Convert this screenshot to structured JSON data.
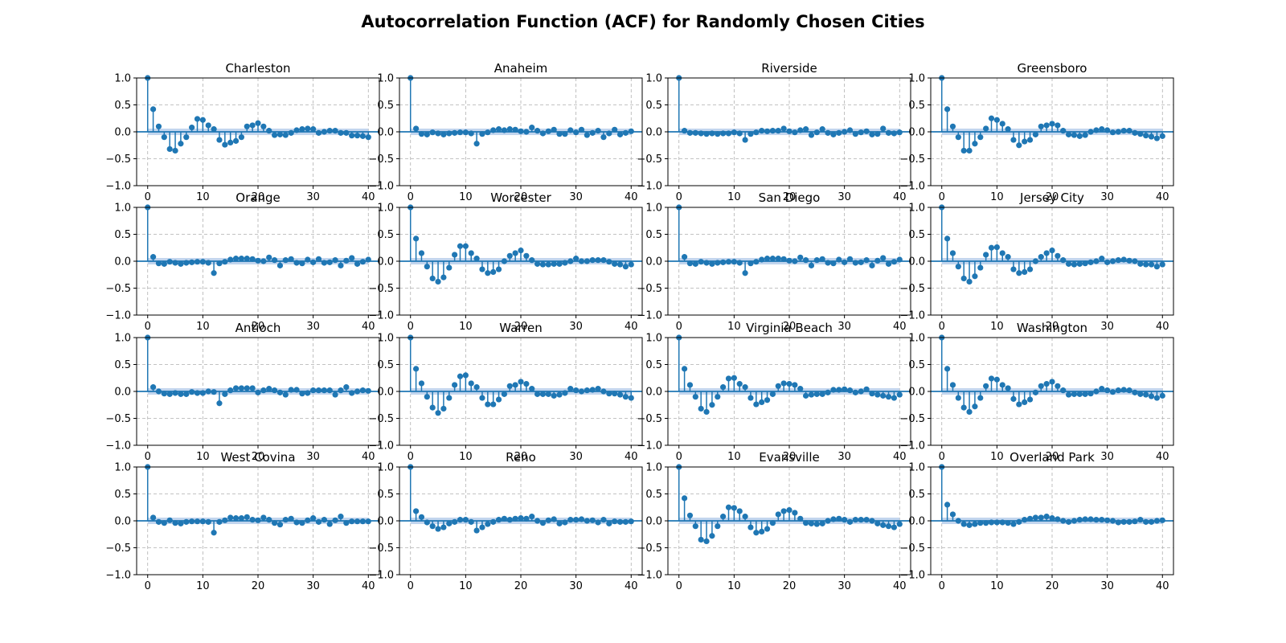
{
  "figure": {
    "title": "Autocorrelation Function (ACF) for Randomly Chosen Cities",
    "colors": {
      "stem": "#1f77b4",
      "confidence_band": "#aec7e8",
      "grid": "#b0b0b0",
      "axis": "#000000"
    }
  },
  "chart_data": [
    {
      "type": "stem",
      "title": "Charleston",
      "xlim": [
        -2,
        42
      ],
      "ylim": [
        -1,
        1
      ],
      "grid": true,
      "x_ticks": [
        0,
        10,
        20,
        30,
        40
      ],
      "y_ticks": [
        -1.0,
        -0.5,
        0.0,
        0.5,
        1.0
      ],
      "confidence_band": 0.06,
      "values": [
        1.0,
        0.42,
        0.1,
        -0.1,
        -0.32,
        -0.35,
        -0.22,
        -0.1,
        0.08,
        0.24,
        0.22,
        0.12,
        0.05,
        -0.15,
        -0.24,
        -0.2,
        -0.17,
        -0.1,
        0.1,
        0.12,
        0.16,
        0.1,
        0.02,
        -0.06,
        -0.05,
        -0.06,
        -0.02,
        0.03,
        0.05,
        0.06,
        0.05,
        -0.02,
        0.0,
        0.02,
        0.02,
        -0.02,
        -0.02,
        -0.07,
        -0.07,
        -0.08,
        -0.1
      ]
    },
    {
      "type": "stem",
      "title": "Anaheim",
      "xlim": [
        -2,
        42
      ],
      "ylim": [
        -1,
        1
      ],
      "grid": true,
      "x_ticks": [
        0,
        10,
        20,
        30,
        40
      ],
      "y_ticks": [
        -1.0,
        -0.5,
        0.0,
        0.5,
        1.0
      ],
      "confidence_band": 0.06,
      "values": [
        1.0,
        0.06,
        -0.04,
        -0.05,
        -0.01,
        -0.03,
        -0.05,
        -0.03,
        -0.02,
        -0.01,
        -0.01,
        -0.03,
        -0.22,
        -0.04,
        -0.01,
        0.03,
        0.05,
        0.03,
        0.05,
        0.04,
        0.01,
        0.0,
        0.08,
        0.02,
        -0.03,
        0.01,
        0.04,
        -0.04,
        -0.04,
        0.03,
        -0.01,
        0.04,
        -0.06,
        -0.02,
        0.02,
        -0.1,
        -0.03,
        0.04,
        -0.05,
        -0.02,
        0.01
      ]
    },
    {
      "type": "stem",
      "title": "Riverside",
      "xlim": [
        -2,
        42
      ],
      "ylim": [
        -1,
        1
      ],
      "grid": true,
      "x_ticks": [
        0,
        10,
        20,
        30,
        40
      ],
      "y_ticks": [
        -1.0,
        -0.5,
        0.0,
        0.5,
        1.0
      ],
      "confidence_band": 0.06,
      "values": [
        1.0,
        0.02,
        -0.02,
        -0.02,
        -0.03,
        -0.04,
        -0.03,
        -0.04,
        -0.03,
        -0.03,
        -0.01,
        -0.03,
        -0.15,
        -0.04,
        -0.01,
        0.02,
        0.01,
        0.02,
        0.02,
        0.06,
        0.01,
        -0.01,
        0.03,
        0.05,
        -0.06,
        -0.01,
        0.05,
        -0.02,
        -0.05,
        -0.02,
        0.0,
        0.03,
        -0.04,
        -0.01,
        0.01,
        -0.05,
        -0.04,
        0.06,
        -0.02,
        -0.03,
        -0.01
      ]
    },
    {
      "type": "stem",
      "title": "Greensboro",
      "xlim": [
        -2,
        42
      ],
      "ylim": [
        -1,
        1
      ],
      "grid": true,
      "x_ticks": [
        0,
        10,
        20,
        30,
        40
      ],
      "y_ticks": [
        -1.0,
        -0.5,
        0.0,
        0.5,
        1.0
      ],
      "confidence_band": 0.06,
      "values": [
        1.0,
        0.42,
        0.1,
        -0.1,
        -0.35,
        -0.35,
        -0.22,
        -0.1,
        0.06,
        0.25,
        0.22,
        0.15,
        0.05,
        -0.15,
        -0.25,
        -0.18,
        -0.15,
        -0.05,
        0.1,
        0.12,
        0.15,
        0.12,
        0.02,
        -0.05,
        -0.06,
        -0.08,
        -0.06,
        0.0,
        0.03,
        0.05,
        0.03,
        -0.01,
        0.0,
        0.02,
        0.02,
        -0.02,
        -0.04,
        -0.07,
        -0.09,
        -0.12,
        -0.08
      ]
    },
    {
      "type": "stem",
      "title": "Orange",
      "xlim": [
        -2,
        42
      ],
      "ylim": [
        -1,
        1
      ],
      "grid": true,
      "x_ticks": [
        0,
        10,
        20,
        30,
        40
      ],
      "y_ticks": [
        -1.0,
        -0.5,
        0.0,
        0.5,
        1.0
      ],
      "confidence_band": 0.06,
      "values": [
        1.0,
        0.08,
        -0.04,
        -0.05,
        -0.01,
        -0.03,
        -0.05,
        -0.03,
        -0.02,
        -0.01,
        -0.01,
        -0.03,
        -0.22,
        -0.04,
        -0.01,
        0.03,
        0.05,
        0.05,
        0.05,
        0.04,
        0.01,
        0.0,
        0.07,
        0.02,
        -0.08,
        0.02,
        0.04,
        -0.03,
        -0.04,
        0.03,
        -0.02,
        0.04,
        -0.03,
        -0.02,
        0.02,
        -0.08,
        0.01,
        0.06,
        -0.05,
        -0.01,
        0.03
      ]
    },
    {
      "type": "stem",
      "title": "Worcester",
      "xlim": [
        -2,
        42
      ],
      "ylim": [
        -1,
        1
      ],
      "grid": true,
      "x_ticks": [
        0,
        10,
        20,
        30,
        40
      ],
      "y_ticks": [
        -1.0,
        -0.5,
        0.0,
        0.5,
        1.0
      ],
      "confidence_band": 0.06,
      "values": [
        1.0,
        0.42,
        0.15,
        -0.1,
        -0.32,
        -0.38,
        -0.3,
        -0.12,
        0.12,
        0.28,
        0.28,
        0.15,
        0.05,
        -0.15,
        -0.22,
        -0.2,
        -0.15,
        0.0,
        0.1,
        0.15,
        0.2,
        0.1,
        0.02,
        -0.05,
        -0.06,
        -0.06,
        -0.05,
        -0.05,
        -0.03,
        0.0,
        0.05,
        0.0,
        0.0,
        0.02,
        0.02,
        0.02,
        -0.01,
        -0.05,
        -0.06,
        -0.1,
        -0.06
      ]
    },
    {
      "type": "stem",
      "title": "San Diego",
      "xlim": [
        -2,
        42
      ],
      "ylim": [
        -1,
        1
      ],
      "grid": true,
      "x_ticks": [
        0,
        10,
        20,
        30,
        40
      ],
      "y_ticks": [
        -1.0,
        -0.5,
        0.0,
        0.5,
        1.0
      ],
      "confidence_band": 0.06,
      "values": [
        1.0,
        0.08,
        -0.04,
        -0.05,
        -0.01,
        -0.03,
        -0.05,
        -0.03,
        -0.02,
        -0.01,
        -0.01,
        -0.03,
        -0.22,
        -0.04,
        -0.01,
        0.03,
        0.05,
        0.05,
        0.05,
        0.04,
        0.01,
        0.0,
        0.07,
        0.02,
        -0.08,
        0.02,
        0.04,
        -0.03,
        -0.04,
        0.03,
        -0.02,
        0.04,
        -0.03,
        -0.02,
        0.02,
        -0.08,
        0.01,
        0.06,
        -0.05,
        -0.01,
        0.03
      ]
    },
    {
      "type": "stem",
      "title": "Jersey City",
      "xlim": [
        -2,
        42
      ],
      "ylim": [
        -1,
        1
      ],
      "grid": true,
      "x_ticks": [
        0,
        10,
        20,
        30,
        40
      ],
      "y_ticks": [
        -1.0,
        -0.5,
        0.0,
        0.5,
        1.0
      ],
      "confidence_band": 0.06,
      "values": [
        1.0,
        0.42,
        0.15,
        -0.1,
        -0.32,
        -0.38,
        -0.28,
        -0.12,
        0.12,
        0.25,
        0.26,
        0.15,
        0.08,
        -0.15,
        -0.22,
        -0.2,
        -0.15,
        0.0,
        0.08,
        0.15,
        0.2,
        0.1,
        0.02,
        -0.05,
        -0.06,
        -0.05,
        -0.04,
        -0.02,
        0.0,
        0.05,
        -0.02,
        0.0,
        0.02,
        0.03,
        0.01,
        0.0,
        -0.05,
        -0.06,
        -0.06,
        -0.1,
        -0.06
      ]
    },
    {
      "type": "stem",
      "title": "Antioch",
      "xlim": [
        -2,
        42
      ],
      "ylim": [
        -1,
        1
      ],
      "grid": true,
      "x_ticks": [
        0,
        10,
        20,
        30,
        40
      ],
      "y_ticks": [
        -1.0,
        -0.5,
        0.0,
        0.5,
        1.0
      ],
      "confidence_band": 0.06,
      "values": [
        1.0,
        0.08,
        0.0,
        -0.04,
        -0.05,
        -0.03,
        -0.05,
        -0.05,
        -0.01,
        -0.03,
        -0.03,
        0.0,
        -0.01,
        -0.22,
        -0.05,
        0.02,
        0.06,
        0.06,
        0.06,
        0.06,
        -0.02,
        0.02,
        0.05,
        0.02,
        -0.02,
        -0.06,
        0.03,
        0.03,
        -0.04,
        -0.03,
        0.02,
        0.02,
        0.02,
        0.02,
        -0.06,
        0.02,
        0.08,
        -0.03,
        0.0,
        0.02,
        0.01
      ]
    },
    {
      "type": "stem",
      "title": "Warren",
      "xlim": [
        -2,
        42
      ],
      "ylim": [
        -1,
        1
      ],
      "grid": true,
      "x_ticks": [
        0,
        10,
        20,
        30,
        40
      ],
      "y_ticks": [
        -1.0,
        -0.5,
        0.0,
        0.5,
        1.0
      ],
      "confidence_band": 0.06,
      "values": [
        1.0,
        0.42,
        0.15,
        -0.1,
        -0.3,
        -0.4,
        -0.32,
        -0.12,
        0.12,
        0.28,
        0.3,
        0.15,
        0.08,
        -0.12,
        -0.24,
        -0.24,
        -0.15,
        -0.05,
        0.1,
        0.12,
        0.18,
        0.14,
        0.05,
        -0.05,
        -0.05,
        -0.05,
        -0.08,
        -0.06,
        -0.03,
        0.05,
        0.02,
        0.0,
        0.02,
        0.03,
        0.05,
        0.0,
        -0.04,
        -0.04,
        -0.06,
        -0.1,
        -0.12
      ]
    },
    {
      "type": "stem",
      "title": "Virginia Beach",
      "xlim": [
        -2,
        42
      ],
      "ylim": [
        -1,
        1
      ],
      "grid": true,
      "x_ticks": [
        0,
        10,
        20,
        30,
        40
      ],
      "y_ticks": [
        -1.0,
        -0.5,
        0.0,
        0.5,
        1.0
      ],
      "confidence_band": 0.06,
      "values": [
        1.0,
        0.42,
        0.12,
        -0.1,
        -0.32,
        -0.38,
        -0.25,
        -0.1,
        0.08,
        0.24,
        0.25,
        0.14,
        0.08,
        -0.12,
        -0.24,
        -0.2,
        -0.16,
        -0.05,
        0.1,
        0.15,
        0.14,
        0.12,
        0.05,
        -0.08,
        -0.06,
        -0.05,
        -0.05,
        -0.02,
        0.03,
        0.03,
        0.04,
        0.02,
        -0.02,
        0.0,
        0.04,
        -0.04,
        -0.06,
        -0.08,
        -0.1,
        -0.12,
        -0.06
      ]
    },
    {
      "type": "stem",
      "title": "Washington",
      "xlim": [
        -2,
        42
      ],
      "ylim": [
        -1,
        1
      ],
      "grid": true,
      "x_ticks": [
        0,
        10,
        20,
        30,
        40
      ],
      "y_ticks": [
        -1.0,
        -0.5,
        0.0,
        0.5,
        1.0
      ],
      "confidence_band": 0.06,
      "values": [
        1.0,
        0.42,
        0.12,
        -0.12,
        -0.3,
        -0.38,
        -0.28,
        -0.12,
        0.1,
        0.24,
        0.22,
        0.12,
        0.06,
        -0.14,
        -0.24,
        -0.2,
        -0.15,
        -0.02,
        0.1,
        0.14,
        0.18,
        0.1,
        0.02,
        -0.06,
        -0.05,
        -0.05,
        -0.05,
        -0.04,
        0.0,
        0.05,
        0.02,
        -0.01,
        0.02,
        0.03,
        0.02,
        -0.02,
        -0.05,
        -0.06,
        -0.09,
        -0.12,
        -0.08
      ]
    },
    {
      "type": "stem",
      "title": "West Covina",
      "xlim": [
        -2,
        42
      ],
      "ylim": [
        -1,
        1
      ],
      "grid": true,
      "x_ticks": [
        0,
        10,
        20,
        30,
        40
      ],
      "y_ticks": [
        -1.0,
        -0.5,
        0.0,
        0.5,
        1.0
      ],
      "confidence_band": 0.06,
      "values": [
        1.0,
        0.06,
        -0.02,
        -0.04,
        0.01,
        -0.04,
        -0.05,
        -0.02,
        -0.01,
        -0.01,
        -0.01,
        -0.02,
        -0.22,
        -0.02,
        0.01,
        0.06,
        0.05,
        0.05,
        0.07,
        0.02,
        0.01,
        0.06,
        0.02,
        -0.04,
        -0.07,
        0.02,
        0.04,
        -0.03,
        -0.04,
        0.01,
        0.05,
        -0.02,
        0.02,
        -0.06,
        0.01,
        0.08,
        -0.04,
        -0.01,
        -0.01,
        -0.01,
        -0.01
      ]
    },
    {
      "type": "stem",
      "title": "Reno",
      "xlim": [
        -2,
        42
      ],
      "ylim": [
        -1,
        1
      ],
      "grid": true,
      "x_ticks": [
        0,
        10,
        20,
        30,
        40
      ],
      "y_ticks": [
        -1.0,
        -0.5,
        0.0,
        0.5,
        1.0
      ],
      "confidence_band": 0.06,
      "values": [
        1.0,
        0.18,
        0.07,
        -0.03,
        -0.1,
        -0.15,
        -0.12,
        -0.05,
        -0.02,
        0.02,
        0.02,
        -0.02,
        -0.18,
        -0.12,
        -0.06,
        -0.02,
        0.02,
        0.04,
        0.02,
        0.04,
        0.05,
        0.04,
        0.08,
        0.0,
        -0.04,
        0.01,
        0.03,
        -0.05,
        -0.03,
        0.02,
        0.02,
        0.03,
        0.0,
        0.01,
        -0.03,
        0.02,
        -0.05,
        -0.01,
        -0.02,
        -0.02,
        -0.01
      ]
    },
    {
      "type": "stem",
      "title": "Evansville",
      "xlim": [
        -2,
        42
      ],
      "ylim": [
        -1,
        1
      ],
      "grid": true,
      "x_ticks": [
        0,
        10,
        20,
        30,
        40
      ],
      "y_ticks": [
        -1.0,
        -0.5,
        0.0,
        0.5,
        1.0
      ],
      "confidence_band": 0.06,
      "values": [
        1.0,
        0.42,
        0.1,
        -0.1,
        -0.35,
        -0.38,
        -0.28,
        -0.1,
        0.08,
        0.25,
        0.24,
        0.18,
        0.08,
        -0.12,
        -0.22,
        -0.2,
        -0.15,
        -0.04,
        0.12,
        0.18,
        0.2,
        0.15,
        0.04,
        -0.04,
        -0.05,
        -0.06,
        -0.05,
        0.0,
        0.03,
        0.04,
        0.02,
        -0.02,
        0.02,
        0.02,
        0.02,
        0.0,
        -0.05,
        -0.08,
        -0.1,
        -0.12,
        -0.06
      ]
    },
    {
      "type": "stem",
      "title": "Overland Park",
      "xlim": [
        -2,
        42
      ],
      "ylim": [
        -1,
        1
      ],
      "grid": true,
      "x_ticks": [
        0,
        10,
        20,
        30,
        40
      ],
      "y_ticks": [
        -1.0,
        -0.5,
        0.0,
        0.5,
        1.0
      ],
      "confidence_band": 0.06,
      "values": [
        1.0,
        0.3,
        0.12,
        0.0,
        -0.06,
        -0.08,
        -0.06,
        -0.04,
        -0.04,
        -0.03,
        -0.03,
        -0.03,
        -0.04,
        -0.06,
        -0.02,
        0.02,
        0.04,
        0.06,
        0.06,
        0.08,
        0.05,
        0.03,
        0.0,
        -0.02,
        0.0,
        0.02,
        0.03,
        0.03,
        0.02,
        0.02,
        0.01,
        0.0,
        -0.03,
        -0.02,
        -0.02,
        -0.01,
        0.02,
        -0.02,
        -0.02,
        0.0,
        0.01
      ]
    }
  ]
}
